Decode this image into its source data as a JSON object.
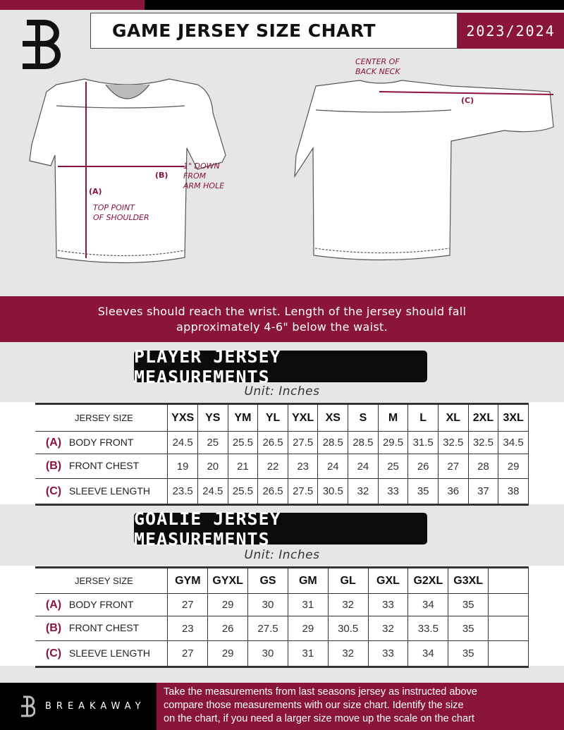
{
  "header": {
    "title": "GAME JERSEY SIZE CHART",
    "season": "2023/2024"
  },
  "diagram": {
    "center_back_neck": [
      "CENTER OF",
      "BACK NECK"
    ],
    "label_c": "(C)",
    "label_b": "(B)",
    "label_a": "(A)",
    "b_note": [
      "1\" DOWN",
      "FROM",
      "ARM HOLE"
    ],
    "a_note": [
      "TOP POINT",
      "OF SHOULDER"
    ]
  },
  "band": {
    "line1": "Sleeves should reach the wrist. Length of the jersey should fall",
    "line2": "approximately 4-6\" below the waist."
  },
  "player": {
    "heading": "PLAYER JERSEY MEASUREMENTS",
    "unit": "Unit: Inches",
    "size_label": "JERSEY SIZE",
    "sizes": [
      "YXS",
      "YS",
      "YM",
      "YL",
      "YXL",
      "XS",
      "S",
      "M",
      "L",
      "XL",
      "2XL",
      "3XL"
    ],
    "rows": [
      {
        "key": "(A)",
        "label": "BODY FRONT",
        "values": [
          "24.5",
          "25",
          "25.5",
          "26.5",
          "27.5",
          "28.5",
          "28.5",
          "29.5",
          "31.5",
          "32.5",
          "32.5",
          "34.5"
        ]
      },
      {
        "key": "(B)",
        "label": "FRONT CHEST",
        "values": [
          "19",
          "20",
          "21",
          "22",
          "23",
          "24",
          "24",
          "25",
          "26",
          "27",
          "28",
          "29"
        ]
      },
      {
        "key": "(C)",
        "label": "SLEEVE LENGTH",
        "values": [
          "23.5",
          "24.5",
          "25.5",
          "26.5",
          "27.5",
          "30.5",
          "32",
          "33",
          "35",
          "36",
          "37",
          "38"
        ]
      }
    ]
  },
  "goalie": {
    "heading": "GOALIE JERSEY MEASUREMENTS",
    "unit": "Unit: Inches",
    "size_label": "JERSEY SIZE",
    "sizes": [
      "GYM",
      "GYXL",
      "GS",
      "GM",
      "GL",
      "GXL",
      "G2XL",
      "G3XL",
      ""
    ],
    "rows": [
      {
        "key": "(A)",
        "label": "BODY FRONT",
        "values": [
          "27",
          "29",
          "30",
          "31",
          "32",
          "33",
          "34",
          "35",
          ""
        ]
      },
      {
        "key": "(B)",
        "label": "FRONT CHEST",
        "values": [
          "23",
          "26",
          "27.5",
          "29",
          "30.5",
          "32",
          "33.5",
          "35",
          ""
        ]
      },
      {
        "key": "(C)",
        "label": "SLEEVE LENGTH",
        "values": [
          "27",
          "29",
          "30",
          "31",
          "32",
          "33",
          "34",
          "35",
          ""
        ]
      }
    ]
  },
  "footer": {
    "brand": "BREAKAWAY",
    "text": [
      "Take the measurements from last seasons jersey as instructed above",
      "compare those measurements  with our size chart. Identify the size",
      "on the chart, if you need a larger size move up the scale on the chart"
    ]
  },
  "colors": {
    "accent": "#8a1538",
    "dark": "#000000",
    "background": "#e6e6e7"
  }
}
